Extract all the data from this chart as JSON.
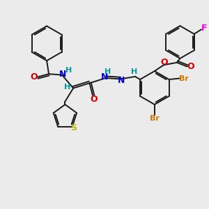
{
  "background_color": "#ebebeb",
  "bond_color": "#1a1a1a",
  "colors": {
    "N": "#0000cc",
    "O": "#cc0000",
    "S": "#bbbb00",
    "Br": "#cc7700",
    "F": "#ee00ee",
    "H": "#009999",
    "C": "#1a1a1a"
  },
  "font_size_atom": 8,
  "fig_size": [
    3.0,
    3.0
  ],
  "dpi": 100
}
